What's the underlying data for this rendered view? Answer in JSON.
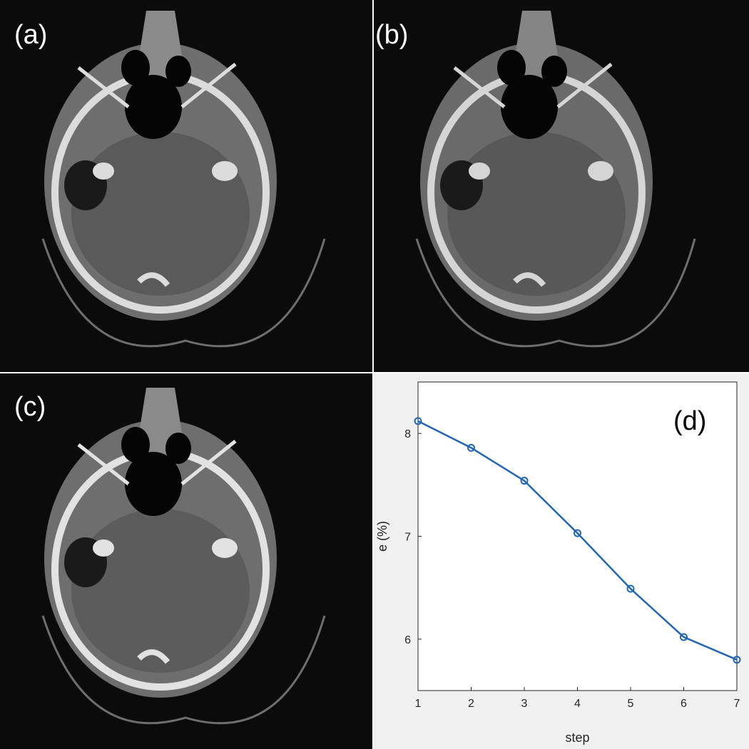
{
  "panels": [
    {
      "id": "a",
      "label": "(a)",
      "content": "ct-scan-noisy"
    },
    {
      "id": "b",
      "label": "(b)",
      "content": "ct-scan-filtered"
    },
    {
      "id": "c",
      "label": "(c)",
      "content": "ct-scan-reconstructed"
    },
    {
      "id": "d",
      "label": "(d)",
      "content": "error-plot"
    }
  ],
  "colors": {
    "scan_background": "#0b0b0b",
    "bone": "#dcdcdc",
    "tissue": "#6e6e6e",
    "brain": "#5a5a5a",
    "series_line": "#2166b3",
    "plot_background": "#ffffff",
    "figure_background": "#f0f0f0"
  },
  "chart_data": {
    "type": "line",
    "title": "",
    "xlabel": "step",
    "ylabel": "e (%)",
    "x": [
      1,
      2,
      3,
      4,
      5,
      6,
      7
    ],
    "series": [
      {
        "values": [
          8.12,
          7.86,
          7.54,
          7.03,
          6.49,
          6.02,
          5.8
        ],
        "marker": "circle"
      }
    ],
    "xlim": [
      1,
      7
    ],
    "ylim": [
      5.5,
      8.5
    ],
    "xticks": [
      1,
      2,
      3,
      4,
      5,
      6,
      7
    ],
    "yticks": [
      6,
      7,
      8
    ],
    "grid": false
  }
}
